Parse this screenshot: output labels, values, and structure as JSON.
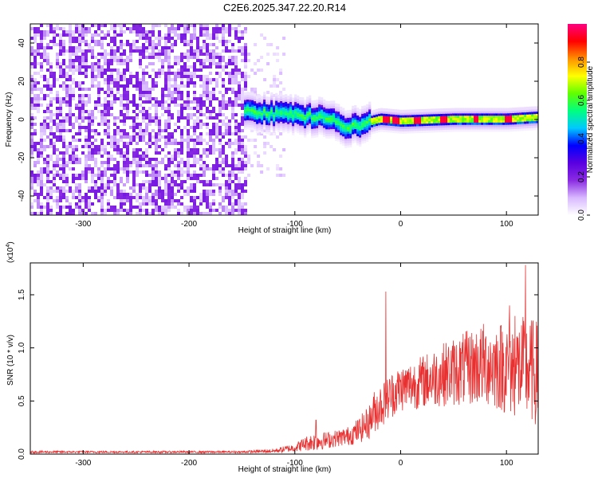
{
  "figure_title": "C2E6.2025.347.22.20.R14",
  "chart_data": [
    {
      "type": "heatmap",
      "title": "C2E6.2025.347.22.20.R14",
      "xlabel": "Height of straight line (km)",
      "ylabel": "Frequency (Hz)",
      "xlim": [
        -350,
        130
      ],
      "ylim": [
        -50,
        50
      ],
      "x_ticks": [
        -300,
        -200,
        -100,
        0,
        100
      ],
      "x_tick_labels": [
        "-300",
        "-200",
        "-100",
        "0",
        "100"
      ],
      "y_ticks": [
        -40,
        -20,
        0,
        20,
        40
      ],
      "y_tick_labels": [
        "-40",
        "-20",
        "0",
        "20",
        "40"
      ],
      "colorbar": {
        "label": "Normalized spectral amplitude",
        "range": [
          0,
          1
        ],
        "ticks": [
          0.0,
          0.2,
          0.4,
          0.6,
          0.8
        ],
        "tick_labels": [
          "0.0",
          "0.2",
          "0.4",
          "0.6",
          "0.8"
        ],
        "colormap": [
          "#ffffff",
          "#d8b8ff",
          "#8a2be2",
          "#5a00e0",
          "#0000ff",
          "#00c8ff",
          "#00ff80",
          "#60ff00",
          "#ffff00",
          "#ff9000",
          "#ff0000",
          "#ff0080"
        ]
      },
      "regions": [
        {
          "name": "broadband noise",
          "x_range": [
            -350,
            -148
          ],
          "freq_range": [
            -50,
            50
          ],
          "amplitude": 0.12
        },
        {
          "name": "transition scatter",
          "x_range": [
            -148,
            -110
          ],
          "freq_range": [
            -30,
            45
          ],
          "amplitude": 0.05
        },
        {
          "name": "signal band",
          "x_range": [
            -148,
            130
          ],
          "center_freq": [
            [
              -148,
              6
            ],
            [
              -120,
              4
            ],
            [
              -90,
              3
            ],
            [
              -70,
              2
            ],
            [
              -55,
              -3
            ],
            [
              -40,
              -2
            ],
            [
              -20,
              1
            ],
            [
              0,
              0
            ],
            [
              50,
              1
            ],
            [
              100,
              1
            ],
            [
              130,
              2
            ]
          ],
          "half_width_hz": 4,
          "amplitude": 0.55,
          "peak_amplitude": 0.95,
          "peak_x": [
            -15,
            -5,
            15,
            40,
            70,
            100
          ]
        }
      ]
    },
    {
      "type": "line",
      "xlabel": "Height of straight line (km)",
      "ylabel": "SNR (10 * v/v)",
      "y_scale_label": "(x10",
      "y_scale_exponent": "4",
      "xlim": [
        -350,
        130
      ],
      "ylim": [
        0,
        1.8
      ],
      "x_ticks": [
        -300,
        -200,
        -100,
        0,
        100
      ],
      "x_tick_labels": [
        "-300",
        "-200",
        "-100",
        "0",
        "100"
      ],
      "y_ticks": [
        0.0,
        0.5,
        1.0,
        1.5
      ],
      "y_tick_labels": [
        "0.0",
        "0.5",
        "1.0",
        "1.5"
      ],
      "color": "#e83030",
      "envelope": {
        "x": [
          -350,
          -200,
          -150,
          -120,
          -100,
          -90,
          -80,
          -70,
          -60,
          -50,
          -40,
          -30,
          -25,
          -20,
          -14,
          -10,
          0,
          20,
          40,
          60,
          80,
          100,
          115,
          125,
          130
        ],
        "mean": [
          0.02,
          0.02,
          0.02,
          0.03,
          0.06,
          0.1,
          0.12,
          0.13,
          0.15,
          0.17,
          0.22,
          0.3,
          0.4,
          0.45,
          0.5,
          0.55,
          0.62,
          0.68,
          0.75,
          0.8,
          0.85,
          0.82,
          0.8,
          0.78,
          0.75
        ],
        "spread": [
          0.01,
          0.01,
          0.01,
          0.02,
          0.04,
          0.07,
          0.09,
          0.08,
          0.08,
          0.09,
          0.12,
          0.16,
          0.2,
          0.22,
          0.2,
          0.22,
          0.22,
          0.25,
          0.3,
          0.35,
          0.4,
          0.45,
          0.5,
          0.5,
          0.5
        ]
      },
      "spikes": [
        {
          "x": -80,
          "y": 0.32
        },
        {
          "x": -14,
          "y": 1.53
        },
        {
          "x": 118,
          "y": 1.78
        },
        {
          "x": 103,
          "y": 1.4
        },
        {
          "x": 108,
          "y": 1.3
        }
      ]
    }
  ]
}
